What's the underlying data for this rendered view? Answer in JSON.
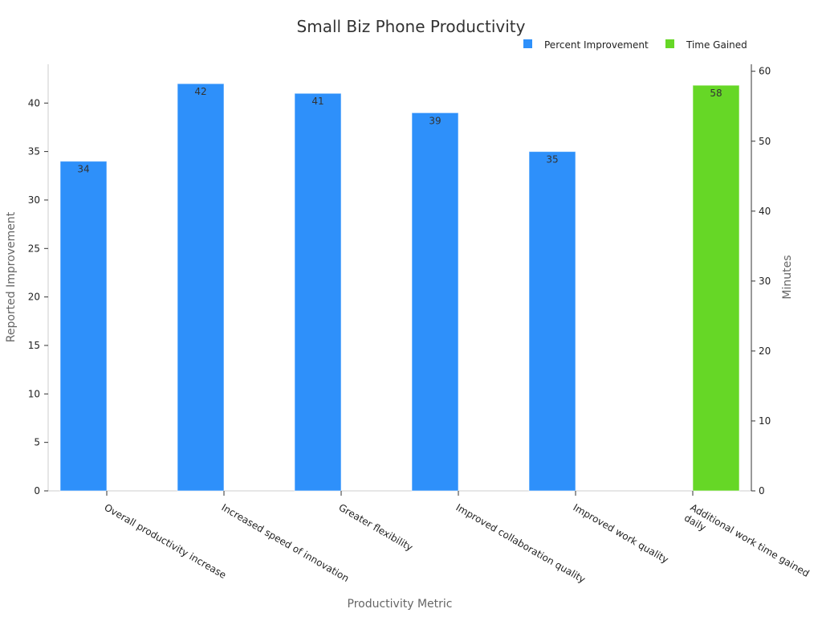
{
  "chart_data": {
    "type": "bar",
    "title": "Small Biz Phone Productivity",
    "xlabel": "Productivity Metric",
    "ylabel": "Reported Improvement",
    "y2label": "Minutes",
    "ylim": [
      0,
      44
    ],
    "y2lim": [
      0,
      61
    ],
    "yticks": [
      "0",
      "5",
      "10",
      "15",
      "20",
      "25",
      "30",
      "35",
      "40"
    ],
    "y2ticks": [
      "0",
      "10",
      "20",
      "30",
      "40",
      "50",
      "60"
    ],
    "categories": [
      [
        "Overall productivity increase"
      ],
      [
        "Increased speed of innovation"
      ],
      [
        "Greater flexibility"
      ],
      [
        "Improved collaboration quality"
      ],
      [
        "Improved work quality"
      ],
      [
        "Additional work time gained",
        "daily"
      ]
    ],
    "series": [
      {
        "name": "Percent Improvement",
        "axis": "left",
        "color": "#2E90FA",
        "values": [
          34,
          42,
          41,
          39,
          35,
          null
        ]
      },
      {
        "name": "Time Gained",
        "axis": "right",
        "color": "#66D726",
        "values": [
          null,
          null,
          null,
          null,
          null,
          58
        ]
      }
    ],
    "legend_position": "top-right",
    "grid": false
  }
}
